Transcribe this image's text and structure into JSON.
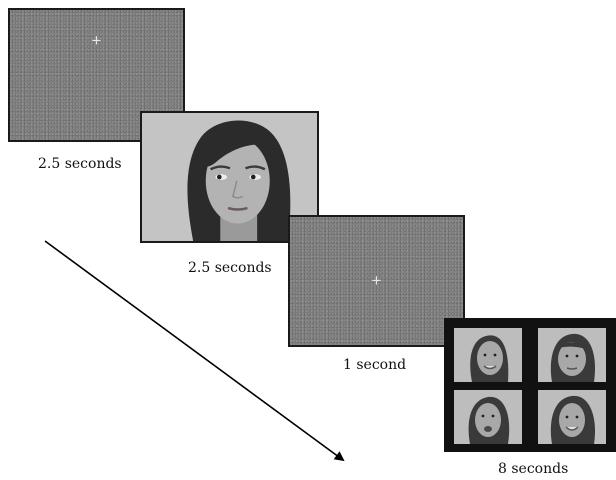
{
  "trial_sequence": [
    {
      "stimulus": "fixation-cross",
      "fixation_symbol": "+",
      "duration_label": "2.5 seconds"
    },
    {
      "stimulus": "face",
      "duration_label": "2.5 seconds"
    },
    {
      "stimulus": "fixation-cross",
      "fixation_symbol": "+",
      "duration_label": "1 second"
    },
    {
      "stimulus": "face-array",
      "face_count": 4,
      "duration_label": "8 seconds"
    }
  ],
  "colors": {
    "noise_gray": "#7f7f7f",
    "face_background": "#c4c4c4",
    "frame_border": "#1a1a1a",
    "arrow": "#000000"
  }
}
